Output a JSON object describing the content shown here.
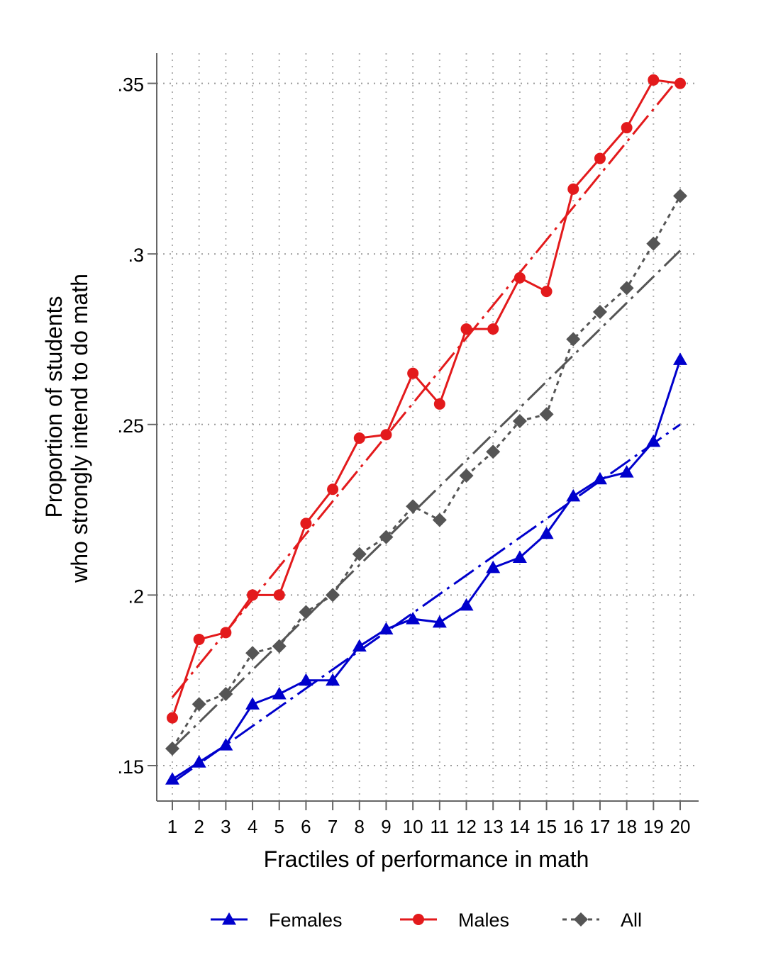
{
  "chart_data": {
    "type": "line",
    "title": "",
    "xlabel": "Fractiles of performance in math",
    "ylabel_lines": [
      "Proportion of students",
      "who strongly intend to do math"
    ],
    "x": [
      1,
      2,
      3,
      4,
      5,
      6,
      7,
      8,
      9,
      10,
      11,
      12,
      13,
      14,
      15,
      16,
      17,
      18,
      19,
      20
    ],
    "xlim": [
      1,
      20
    ],
    "ylim": [
      0.145,
      0.352
    ],
    "yticks": [
      0.15,
      0.2,
      0.25,
      0.3,
      0.35
    ],
    "ytick_labels": [
      ".15",
      ".2",
      ".25",
      ".3",
      ".35"
    ],
    "grid": true,
    "legend_position": "bottom",
    "series": [
      {
        "name": "Females",
        "color": "#0000cc",
        "marker": "triangle",
        "line_style": "solid",
        "values": [
          0.146,
          0.151,
          0.156,
          0.168,
          0.171,
          0.175,
          0.175,
          0.185,
          0.19,
          0.193,
          0.192,
          0.197,
          0.208,
          0.211,
          0.218,
          0.229,
          0.234,
          0.236,
          0.245,
          0.269
        ],
        "fit": [
          0.145,
          0.25
        ]
      },
      {
        "name": "Males",
        "color": "#e31a1c",
        "marker": "circle",
        "line_style": "solid",
        "values": [
          0.164,
          0.187,
          0.189,
          0.2,
          0.2,
          0.221,
          0.231,
          0.246,
          0.247,
          0.265,
          0.256,
          0.278,
          0.278,
          0.293,
          0.289,
          0.319,
          0.328,
          0.337,
          0.351,
          0.35
        ],
        "fit": [
          0.17,
          0.352
        ]
      },
      {
        "name": "All",
        "color": "#555555",
        "marker": "diamond",
        "line_style": "dashed",
        "values": [
          0.155,
          0.168,
          0.171,
          0.183,
          0.185,
          0.195,
          0.2,
          0.212,
          0.217,
          0.226,
          0.222,
          0.235,
          0.242,
          0.251,
          0.253,
          0.275,
          0.283,
          0.29,
          0.303,
          0.317
        ],
        "fit": [
          0.155,
          0.301
        ]
      }
    ]
  }
}
